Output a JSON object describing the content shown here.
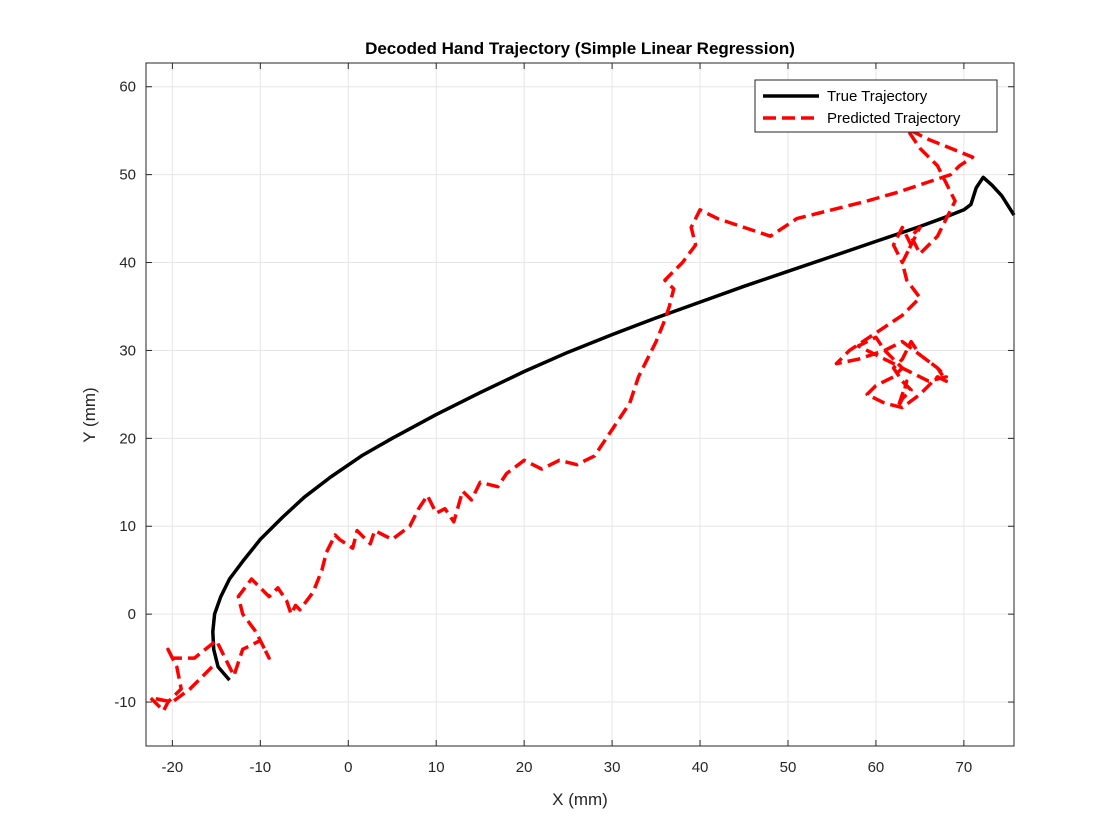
{
  "chart_data": {
    "type": "line",
    "title": "Decoded Hand Trajectory (Simple Linear Regression)",
    "xlabel": "X (mm)",
    "ylabel": "Y (mm)",
    "xlim": [
      -23,
      75.7
    ],
    "ylim": [
      -15,
      62.7
    ],
    "xticks": [
      -20,
      -10,
      0,
      10,
      20,
      30,
      40,
      50,
      60,
      70
    ],
    "yticks": [
      -10,
      0,
      10,
      20,
      30,
      40,
      50,
      60
    ],
    "grid": true,
    "legend_position": "top-right",
    "series": [
      {
        "name": "True Trajectory",
        "color": "#000000",
        "style": "solid",
        "x": [
          -13.5,
          -14.8,
          -15.3,
          -15.4,
          -15.2,
          -14.5,
          -13.5,
          -12,
          -10,
          -7.5,
          -5,
          -2,
          1.5,
          5,
          10,
          15,
          20,
          25,
          30,
          35,
          40,
          45,
          50,
          55,
          60,
          65,
          68,
          70,
          70.8,
          71.4,
          72.2,
          73.2,
          74.3,
          75.7
        ],
        "y": [
          -7.5,
          -6,
          -4,
          -2,
          0,
          2,
          4,
          6,
          8.5,
          11,
          13.3,
          15.6,
          18,
          20,
          22.7,
          25.2,
          27.6,
          29.8,
          31.8,
          33.7,
          35.5,
          37.3,
          39,
          40.7,
          42.4,
          44.1,
          45.2,
          46,
          46.6,
          48.5,
          49.7,
          48.8,
          47.6,
          45.4
        ]
      },
      {
        "name": "Predicted Trajectory",
        "color": "#ff0000",
        "style": "dashed",
        "x": [
          -15.5,
          -18,
          -20,
          -22.5,
          -21,
          -20.5,
          -19,
          -19.5,
          -20.5,
          -20,
          -17.5,
          -15,
          -14,
          -13,
          -12,
          -10,
          -9,
          -10.5,
          -12,
          -12.5,
          -11,
          -9,
          -8,
          -7,
          -6.5,
          -6,
          -5.5,
          -4,
          -3,
          -2.5,
          -1.5,
          -1,
          0.5,
          1,
          2.5,
          3,
          5,
          7,
          8,
          9,
          10,
          11,
          12,
          13,
          14,
          15,
          17,
          18,
          20,
          22,
          24,
          26,
          28,
          30,
          31,
          32,
          33,
          34,
          35,
          36,
          36.5,
          37,
          36,
          38,
          39.5,
          39,
          40,
          42,
          45,
          48,
          51,
          55,
          59,
          62.5,
          65.5,
          68.5,
          69.5,
          71,
          68.5,
          66,
          64,
          61,
          63,
          65,
          67,
          68,
          69,
          68,
          67,
          66,
          65,
          64,
          65,
          64,
          63,
          62,
          63,
          64,
          63,
          63.5,
          65,
          63,
          60,
          57,
          55.5,
          58,
          61,
          63,
          65,
          67,
          68,
          66,
          64,
          62,
          60,
          58,
          60,
          61,
          62,
          63,
          62,
          60,
          59,
          61,
          63,
          65,
          67,
          68,
          67,
          65,
          64,
          63,
          62,
          63,
          64,
          63,
          62.5,
          63,
          63.5,
          63
        ],
        "y": [
          -6,
          -8.5,
          -10,
          -9.5,
          -11,
          -10,
          -8.5,
          -6,
          -4,
          -5,
          -5,
          -3,
          -5,
          -7,
          -4,
          -3,
          -5,
          -2,
          0,
          2,
          4,
          2,
          3,
          1.5,
          0,
          1,
          0.5,
          2.5,
          5,
          7,
          9,
          8.5,
          7.5,
          9.5,
          8,
          9.5,
          8.5,
          10,
          12,
          13.5,
          11.5,
          12,
          10.5,
          14,
          13,
          15,
          14.5,
          16,
          17.5,
          16.5,
          17.5,
          17,
          18,
          21,
          22.5,
          24,
          27,
          29,
          31,
          33.5,
          35,
          37,
          38,
          40,
          42,
          44,
          46,
          45,
          44,
          43,
          45,
          46,
          47,
          48,
          49,
          50,
          51,
          52,
          53,
          54,
          55,
          57,
          56,
          53,
          51,
          49,
          47,
          45,
          43,
          42,
          41,
          43,
          44,
          42,
          40,
          42,
          44,
          42,
          40,
          38,
          36,
          34,
          32,
          30,
          28.5,
          29,
          30,
          31,
          29.5,
          28,
          27,
          26.5,
          27.5,
          28.5,
          29.5,
          30.5,
          31.5,
          30,
          29,
          28,
          27,
          26,
          25,
          24,
          23.5,
          25,
          27,
          26.5,
          28,
          29.5,
          31,
          29,
          28,
          26.5,
          25.5,
          24.5,
          23.5,
          25,
          26.5,
          24.5
        ]
      }
    ]
  }
}
